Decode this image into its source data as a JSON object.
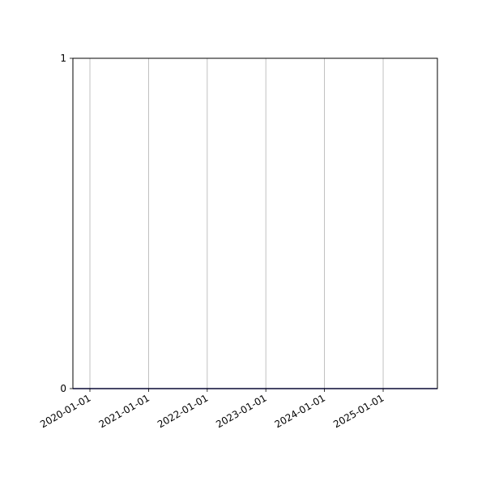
{
  "chart_data": {
    "type": "line",
    "title": "",
    "xlabel": "",
    "ylabel": "",
    "x_axis_type": "date",
    "xlim": [
      "2019-09-17",
      "2025-12-05"
    ],
    "ylim": [
      0,
      1
    ],
    "x_ticks": [
      "2020-01-01",
      "2021-01-01",
      "2022-01-01",
      "2023-01-01",
      "2024-01-01",
      "2025-01-01"
    ],
    "y_ticks": [
      0,
      1
    ],
    "y_tick_labels": [
      "0",
      "1"
    ],
    "grid": {
      "x": true,
      "y": false
    },
    "series": [
      {
        "color": "#1f1fa0",
        "x": [
          "2019-09-17",
          "2025-12-05"
        ],
        "y": [
          0,
          0
        ]
      }
    ]
  }
}
